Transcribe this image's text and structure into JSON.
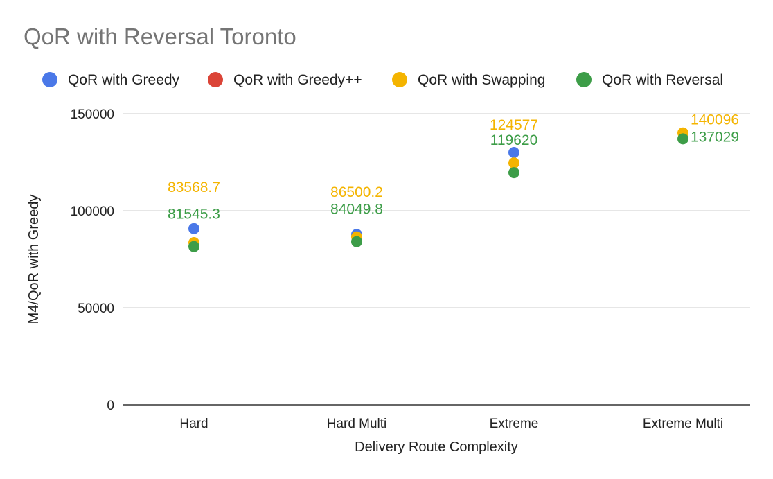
{
  "chart_data": {
    "type": "scatter",
    "title": "QoR with Reversal Toronto",
    "xlabel": "Delivery Route Complexity",
    "ylabel": "M4/QoR with Greedy",
    "ylim": [
      0,
      150000
    ],
    "yticks": [
      0,
      50000,
      100000,
      150000
    ],
    "ytick_labels": [
      "0",
      "50000",
      "100000",
      "150000"
    ],
    "grid": true,
    "legend_position": "top",
    "categories": [
      "Hard",
      "Hard Multi",
      "Extreme",
      "Extreme Multi"
    ],
    "series": [
      {
        "name": "QoR with Greedy",
        "color": "#4a78e8",
        "values": [
          90800,
          87800,
          130000,
          null
        ]
      },
      {
        "name": "QoR with Greedy++",
        "color": "#db4437",
        "values": [
          null,
          null,
          null,
          null
        ]
      },
      {
        "name": "QoR with Swapping",
        "color": "#f4b400",
        "label_color": "#f4b400",
        "values": [
          83568.7,
          86500.2,
          124577,
          140096
        ],
        "data_labels": [
          "83568.7",
          "86500.2",
          "124577",
          "140096"
        ]
      },
      {
        "name": "QoR with Reversal",
        "color": "#3d9d48",
        "label_color": "#3d9d48",
        "values": [
          81545.3,
          84049.8,
          119620,
          137029
        ],
        "data_labels": [
          "81545.3",
          "84049.8",
          "119620",
          "137029"
        ]
      }
    ]
  }
}
